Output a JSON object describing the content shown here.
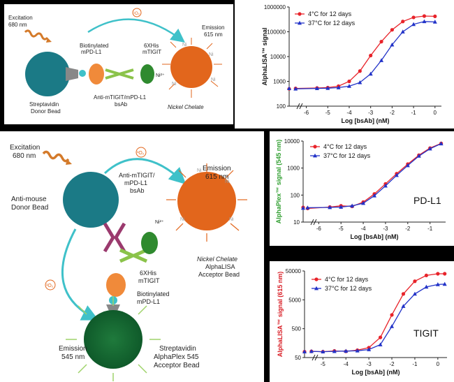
{
  "top_diagram": {
    "excitation": [
      "Excitation",
      "680 nm"
    ],
    "singlet_oxygen": "¹O₂",
    "biotinylated": [
      "Biotinylated",
      "mPD-L1"
    ],
    "his_tag": [
      "6XHis",
      "mTIGIT"
    ],
    "emission": [
      "Emission",
      "615 nm"
    ],
    "donor_bead": [
      "Streptavidin",
      "Donor Bead"
    ],
    "bsab": [
      "Anti-mTIGIT/mPD-L1",
      "bsAb"
    ],
    "nickel": "Nickel Chelate",
    "ni_label": "Ni²⁺",
    "ni_ligand": "Ni",
    "colors": {
      "donor": "#1b7a86",
      "acceptor": "#e2661c",
      "pdl1": "#f08a3a",
      "tigit": "#2f8a2f",
      "antibody": "#8bc34a",
      "arrow": "#3fc1c9",
      "wave": "#d47a2a"
    }
  },
  "bottom_diagram": {
    "excitation": [
      "Excitation",
      "680 nm"
    ],
    "singlet_top": "¹O₂",
    "emission_top": [
      "Emission",
      "615 nm"
    ],
    "donor_bead": [
      "Anti-mouse",
      "Donor Bead"
    ],
    "bsab": [
      "Anti-mTIGIT/",
      "mPD-L1",
      "bsAb"
    ],
    "ni_label": "Ni²⁺",
    "ni_ligand": "Ni",
    "his_tag": [
      "6XHis",
      "mTIGIT"
    ],
    "nickel": [
      "Nickel Chelate",
      "AlphaLISA",
      "Acceptor Bead"
    ],
    "singlet_left": "¹O₂",
    "biotinylated": [
      "Biotinylated",
      "mPD-L1"
    ],
    "emission_bottom": [
      "Emission",
      "545 nm"
    ],
    "streptavidin": [
      "Streptavidin",
      "AlphaPlex 545",
      "Acceptor Bead"
    ],
    "colors": {
      "donor": "#1b7a86",
      "acceptor_orange": "#e2661c",
      "acceptor_green": "#1f7a3c",
      "pdl1": "#f08a3a",
      "tigit": "#2f8a2f",
      "antibody": "#8bc34a",
      "arrow": "#3fc1c9",
      "wave": "#d47a2a",
      "mouse_ab": "#9b3a6e"
    }
  },
  "chart_data": [
    {
      "type": "line",
      "ylabel": "AlphaLISA™ signal",
      "xlabel": "Log [bsAb] (nM)",
      "ylog": true,
      "ylim": [
        100,
        1000000
      ],
      "xlim": [
        -6.8,
        0.3
      ],
      "yticks": [
        "100",
        "1000",
        "10000",
        "100000",
        "1000000"
      ],
      "xticks": [
        "-6",
        "-5",
        "-4",
        "-3",
        "-2",
        "-1",
        "0"
      ],
      "axis_break": true,
      "legend_position": "top-left",
      "series": [
        {
          "name": "4°C for 12 days",
          "color": "#e8232a",
          "marker": "circle",
          "x": [
            -6.8,
            -6.5,
            -5.5,
            -5.0,
            -4.5,
            -4.0,
            -3.5,
            -3.0,
            -2.5,
            -2.0,
            -1.5,
            -1.0,
            -0.5,
            0.0
          ],
          "y": [
            500,
            520,
            540,
            560,
            640,
            1000,
            2600,
            11000,
            40000,
            120000,
            260000,
            380000,
            430000,
            420000
          ]
        },
        {
          "name": "37°C for 12 days",
          "color": "#2233c8",
          "marker": "triangle",
          "x": [
            -6.8,
            -6.5,
            -5.5,
            -5.0,
            -4.5,
            -4.0,
            -3.5,
            -3.0,
            -2.5,
            -2.0,
            -1.5,
            -1.0,
            -0.5,
            0.0
          ],
          "y": [
            520,
            500,
            520,
            530,
            560,
            640,
            900,
            2000,
            7000,
            30000,
            100000,
            200000,
            260000,
            250000
          ]
        }
      ]
    },
    {
      "type": "line",
      "ylabel": "AlphaPlex™ signal (545 nm)",
      "xlabel": "Log [bsAb] (nM)",
      "ylog": true,
      "ylim": [
        10,
        10000
      ],
      "xlim": [
        -6.7,
        -0.3
      ],
      "yticks": [
        "10",
        "100",
        "1000",
        "10000"
      ],
      "xticks": [
        "-6",
        "-5",
        "-4",
        "-3",
        "-2",
        "-1"
      ],
      "axis_break": true,
      "legend_position": "top-left",
      "annotation": "PD-L1",
      "series": [
        {
          "name": "4°C for 12 days",
          "color": "#e8232a",
          "marker": "circle",
          "x": [
            -6.7,
            -6.5,
            -5.5,
            -5.0,
            -4.5,
            -4.0,
            -3.5,
            -3.0,
            -2.5,
            -2.0,
            -1.5,
            -1.0,
            -0.5
          ],
          "y": [
            35,
            32,
            36,
            40,
            38,
            55,
            110,
            260,
            620,
            1400,
            3000,
            5500,
            8200
          ]
        },
        {
          "name": "37°C for 12 days",
          "color": "#2233c8",
          "marker": "triangle",
          "x": [
            -6.7,
            -6.5,
            -5.5,
            -5.0,
            -4.5,
            -4.0,
            -3.5,
            -3.0,
            -2.5,
            -2.0,
            -1.5,
            -1.0,
            -0.5
          ],
          "y": [
            33,
            34,
            35,
            36,
            40,
            50,
            95,
            220,
            540,
            1250,
            2800,
            5200,
            8000
          ]
        }
      ]
    },
    {
      "type": "line",
      "ylabel": "AlphaLISA™ signal (615 nm)",
      "xlabel": "Log [bsAb] (nM)",
      "ylog": true,
      "ylim": [
        50,
        50000
      ],
      "xlim": [
        -5.8,
        0.4
      ],
      "yticks": [
        "50",
        "500",
        "5000",
        "50000"
      ],
      "xticks": [
        "-5",
        "-4",
        "-3",
        "-2",
        "-1",
        "0"
      ],
      "axis_break": true,
      "legend_position": "top-left",
      "annotation": "TIGIT",
      "series": [
        {
          "name": "4°C for 12 days",
          "color": "#e8232a",
          "marker": "circle",
          "x": [
            -5.8,
            -5.5,
            -5.0,
            -4.5,
            -4.0,
            -3.5,
            -3.0,
            -2.5,
            -2.0,
            -1.5,
            -1.0,
            -0.5,
            0.0,
            0.3
          ],
          "y": [
            80,
            82,
            80,
            85,
            82,
            90,
            110,
            250,
            1500,
            8000,
            22000,
            35000,
            40000,
            40000
          ]
        },
        {
          "name": "37°C for 12 days",
          "color": "#2233c8",
          "marker": "triangle",
          "x": [
            -5.8,
            -5.5,
            -5.0,
            -4.5,
            -4.0,
            -3.5,
            -3.0,
            -2.5,
            -2.0,
            -1.5,
            -1.0,
            -0.5,
            0.0,
            0.3
          ],
          "y": [
            80,
            82,
            80,
            82,
            84,
            86,
            95,
            140,
            600,
            3000,
            8000,
            14000,
            17000,
            17500
          ]
        }
      ]
    }
  ]
}
